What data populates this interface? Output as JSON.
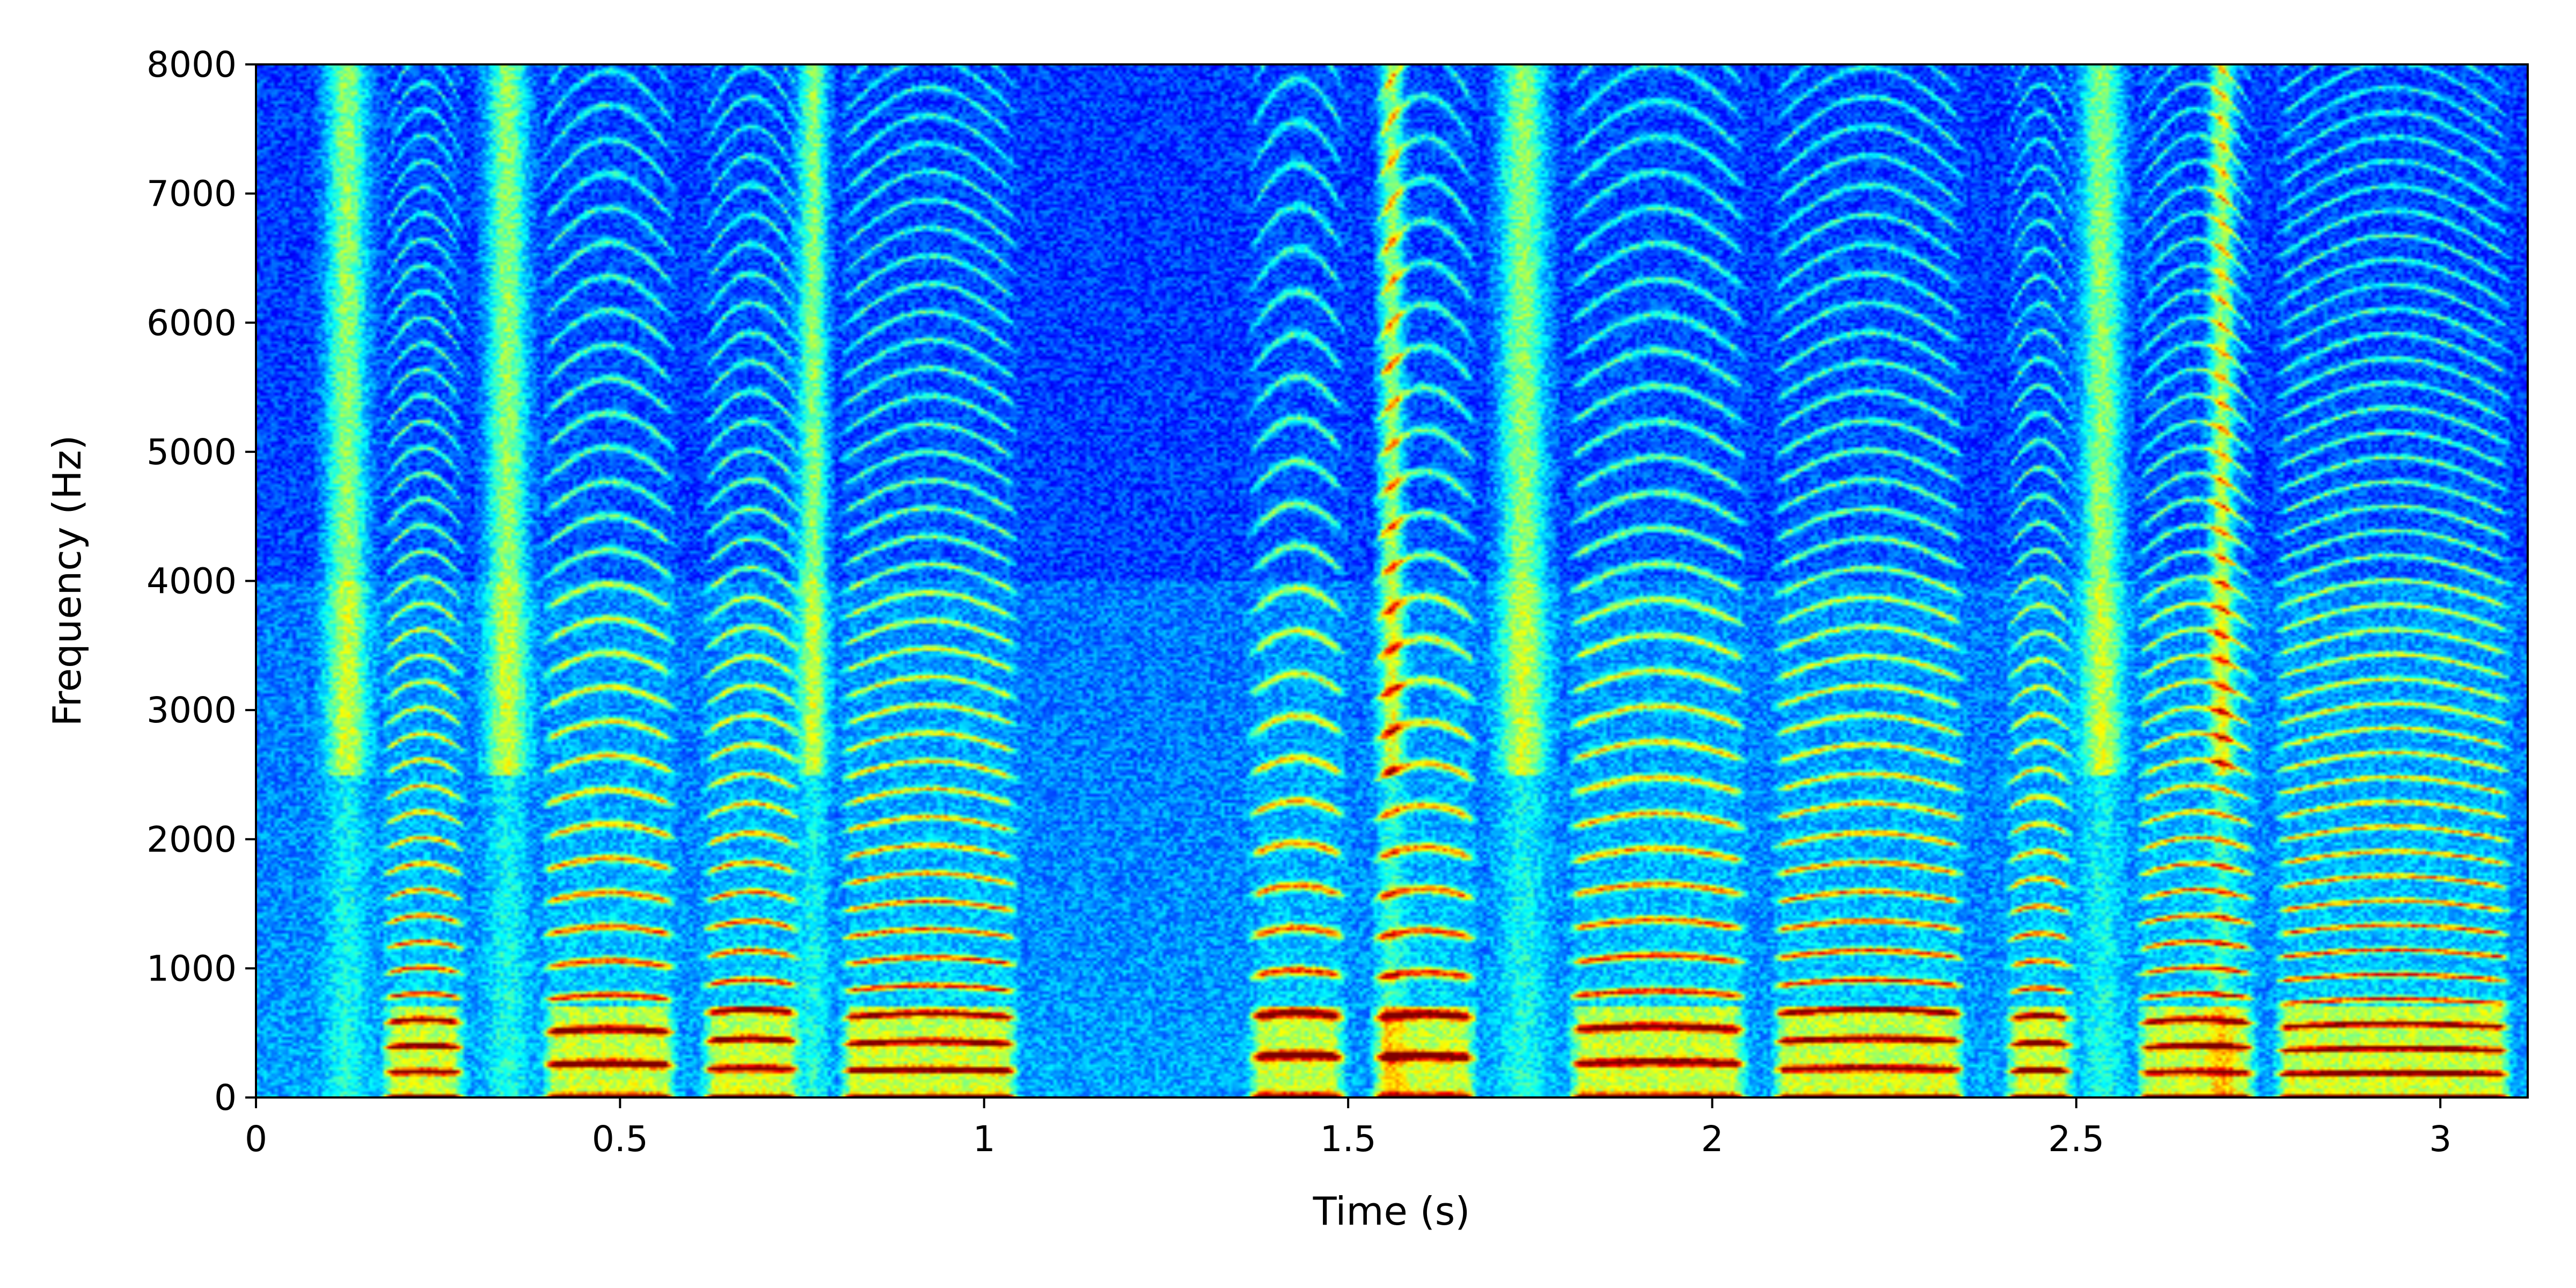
{
  "chart_data": {
    "type": "heatmap",
    "title": "",
    "xlabel": "Time (s)",
    "ylabel": "Frequency (Hz)",
    "xlim": [
      0,
      3.12
    ],
    "ylim": [
      0,
      8000
    ],
    "colormap": "jet",
    "x_ticks": [
      0,
      0.5,
      1,
      1.5,
      2,
      2.5,
      3
    ],
    "x_tick_labels": [
      "0",
      "0.5",
      "1",
      "1.5",
      "2",
      "2.5",
      "3"
    ],
    "y_ticks": [
      0,
      1000,
      2000,
      3000,
      4000,
      5000,
      6000,
      7000,
      8000
    ],
    "y_tick_labels": [
      "0",
      "1000",
      "2000",
      "3000",
      "4000",
      "5000",
      "6000",
      "7000",
      "8000"
    ],
    "voiced_segments": [
      {
        "start": 0.17,
        "end": 0.29,
        "f0_hz": 190
      },
      {
        "start": 0.39,
        "end": 0.58,
        "f0_hz": 250
      },
      {
        "start": 0.61,
        "end": 0.75,
        "f0_hz": 215
      },
      {
        "start": 0.8,
        "end": 1.05,
        "f0_hz": 205
      },
      {
        "start": 1.36,
        "end": 1.5,
        "f0_hz": 310
      },
      {
        "start": 1.53,
        "end": 1.68,
        "f0_hz": 305
      },
      {
        "start": 1.8,
        "end": 2.05,
        "f0_hz": 260
      },
      {
        "start": 2.08,
        "end": 2.35,
        "f0_hz": 215
      },
      {
        "start": 2.4,
        "end": 2.5,
        "f0_hz": 200
      },
      {
        "start": 2.58,
        "end": 2.75,
        "f0_hz": 190
      },
      {
        "start": 2.77,
        "end": 3.1,
        "f0_hz": 180
      }
    ],
    "fricative_segments": [
      {
        "start": 0.09,
        "end": 0.16
      },
      {
        "start": 0.31,
        "end": 0.38
      },
      {
        "start": 0.74,
        "end": 0.79
      },
      {
        "start": 1.54,
        "end": 1.58
      },
      {
        "start": 1.7,
        "end": 1.78
      },
      {
        "start": 2.5,
        "end": 2.57
      },
      {
        "start": 2.68,
        "end": 2.72
      }
    ],
    "grid": false,
    "legend": "none"
  }
}
